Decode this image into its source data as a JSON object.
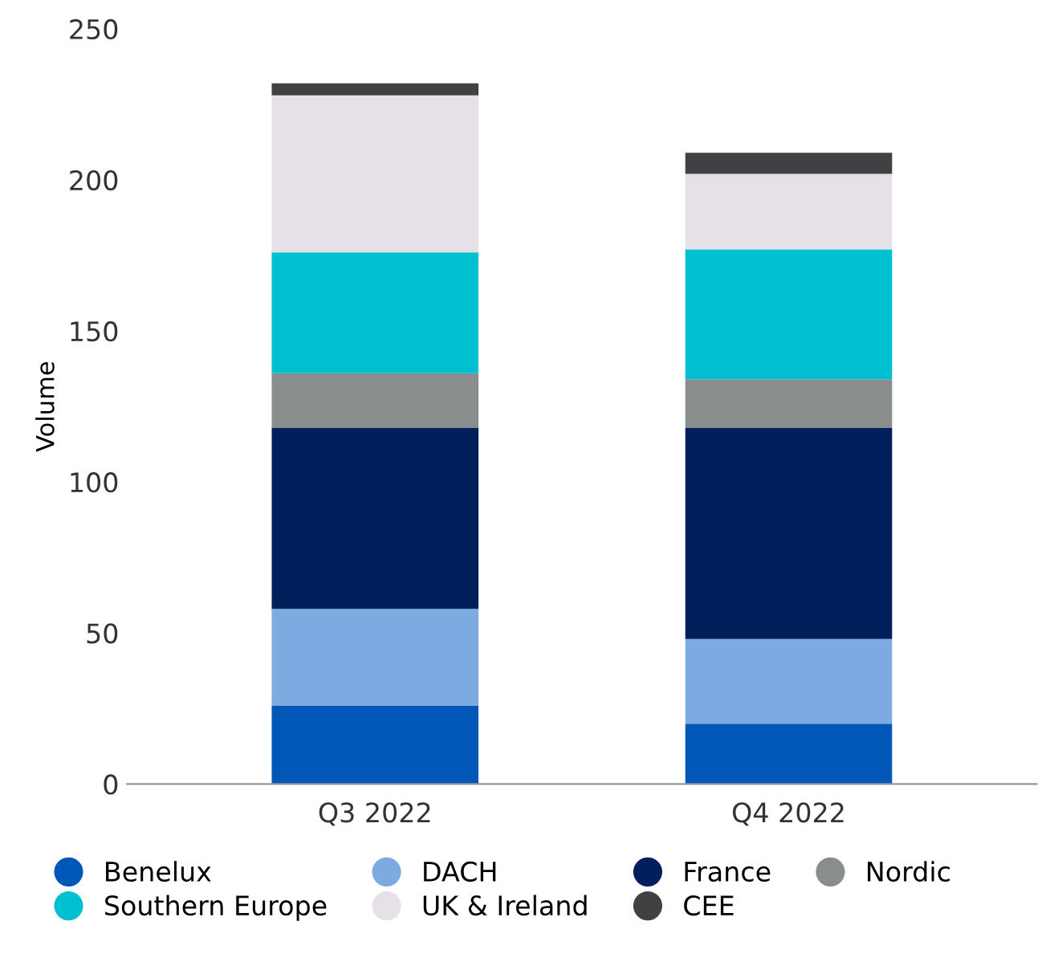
{
  "chart_data": {
    "type": "bar",
    "stacked": true,
    "ylabel": "Volume",
    "categories": [
      "Q3 2022",
      "Q4 2022"
    ],
    "series": [
      {
        "name": "Benelux",
        "color": "#0057b8",
        "values": [
          26,
          20
        ]
      },
      {
        "name": "DACH",
        "color": "#7eaae2",
        "values": [
          32,
          28
        ]
      },
      {
        "name": "France",
        "color": "#001f5b",
        "values": [
          60,
          70
        ]
      },
      {
        "name": "Nordic",
        "color": "#8a8d8d",
        "values": [
          18,
          16
        ]
      },
      {
        "name": "Southern Europe",
        "color": "#00c0d0",
        "values": [
          40,
          43
        ]
      },
      {
        "name": "UK & Ireland",
        "color": "#e6e0e8",
        "values": [
          52,
          25
        ]
      },
      {
        "name": "CEE",
        "color": "#414042",
        "values": [
          4,
          7
        ]
      }
    ],
    "ylim": [
      0,
      250
    ],
    "yticks": [
      0,
      50,
      100,
      150,
      200,
      250
    ],
    "grid": false,
    "legend": "bottom"
  }
}
